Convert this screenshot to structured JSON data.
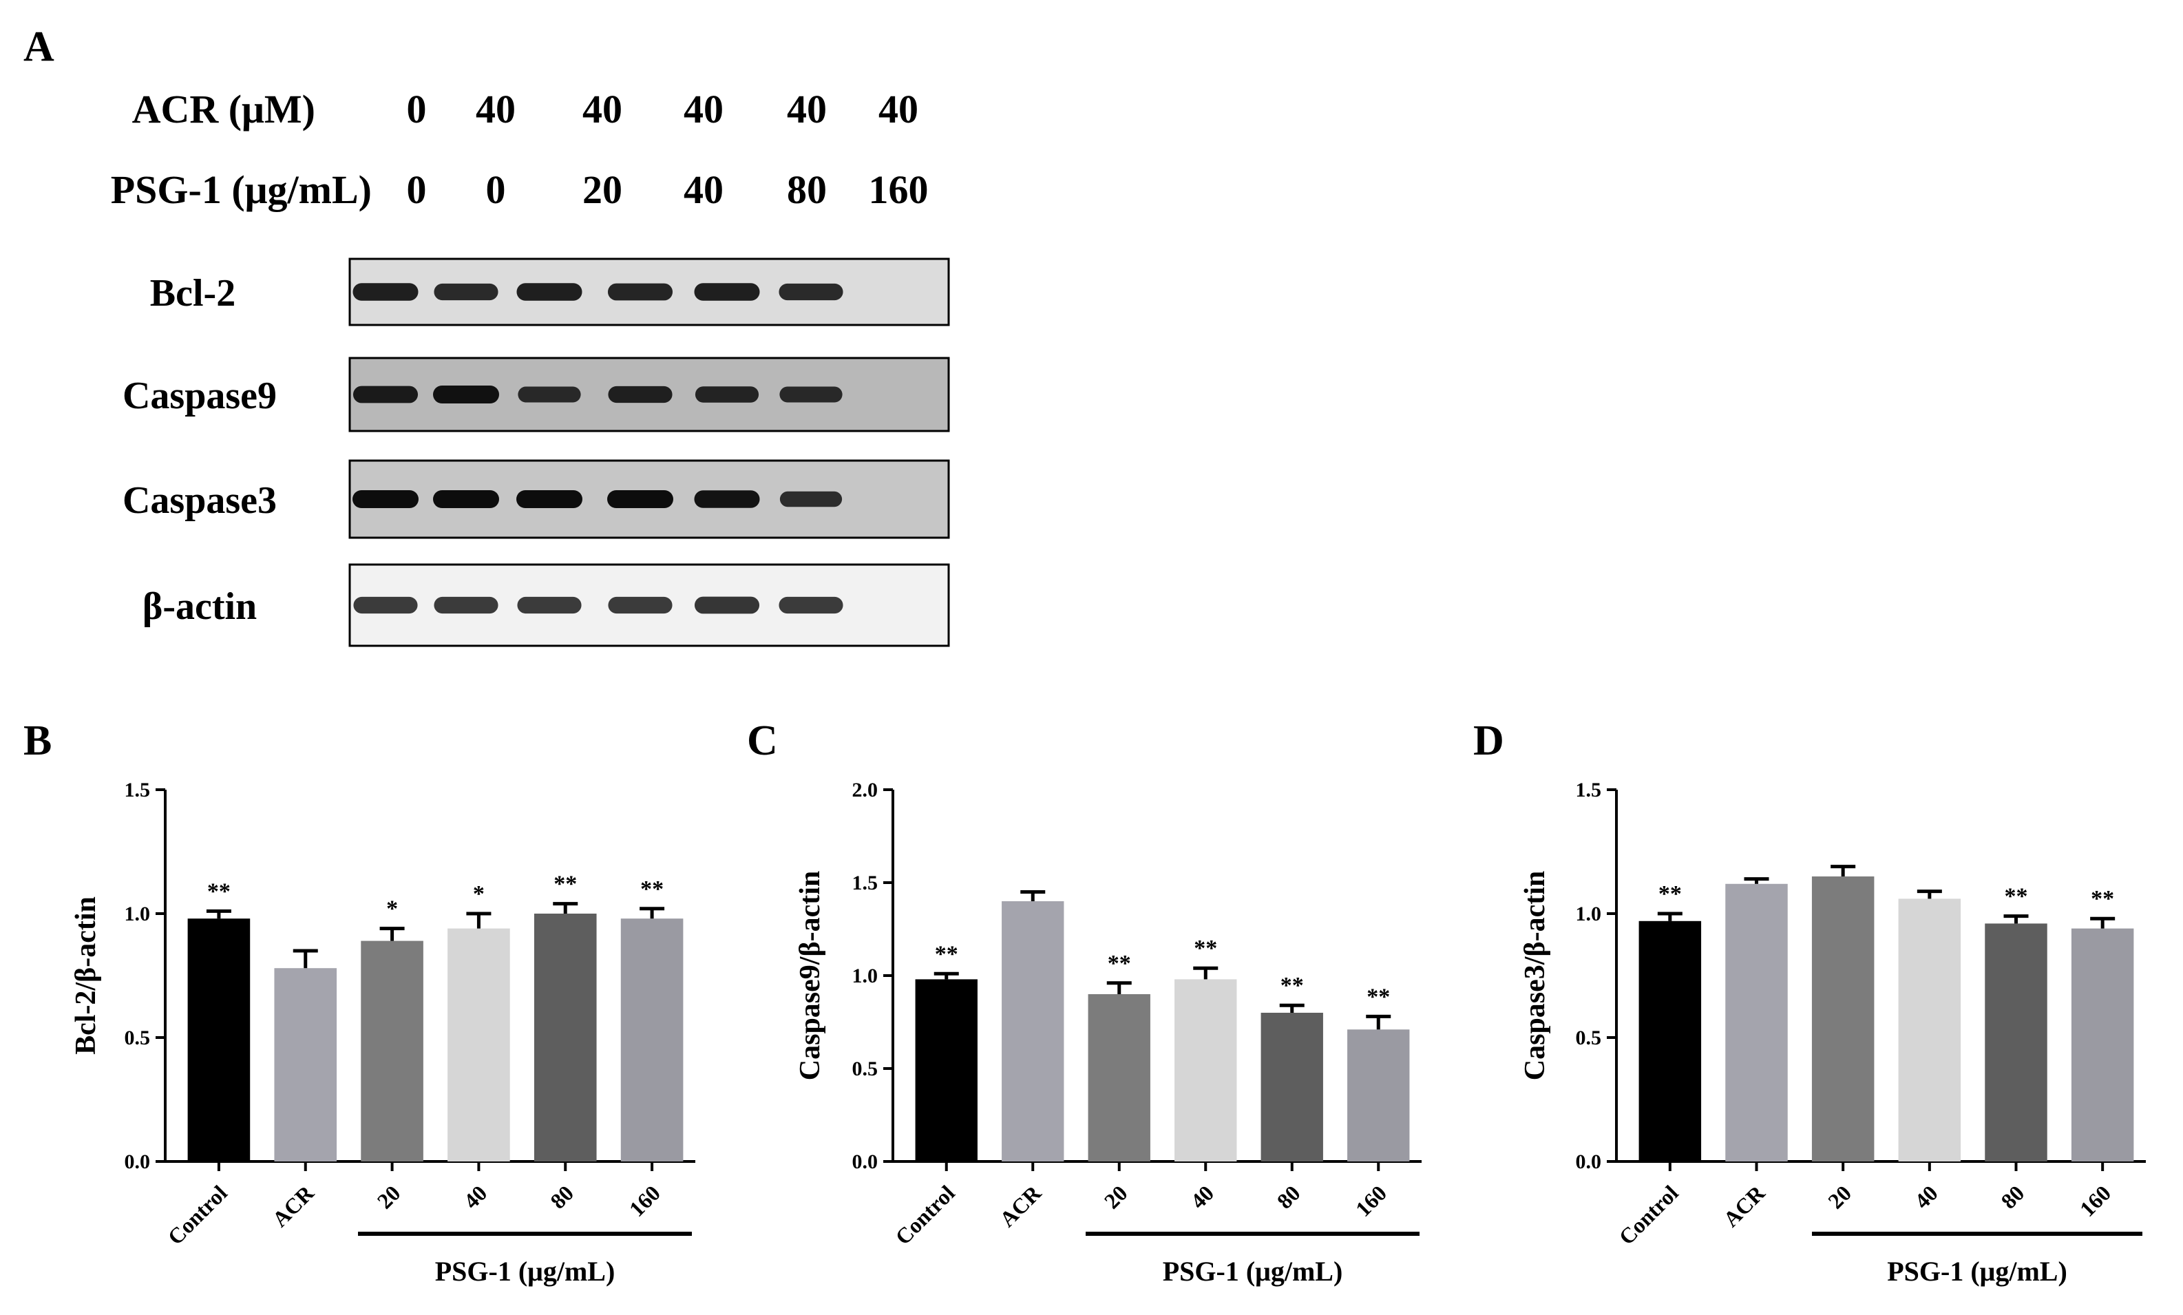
{
  "panel_a": {
    "letter": "A",
    "conditions": [
      {
        "label": "ACR (μM)",
        "values": [
          "0",
          "40",
          "40",
          "40",
          "40",
          "40"
        ]
      },
      {
        "label": "PSG-1 (μg/mL)",
        "values": [
          "0",
          "0",
          "20",
          "40",
          "80",
          "160"
        ]
      }
    ],
    "blots": [
      {
        "label": "Bcl-2",
        "bg": "#dcdcdc",
        "band_color": "#1a1a1a",
        "intensity": [
          0.95,
          0.85,
          0.95,
          0.9,
          0.95,
          0.85
        ]
      },
      {
        "label": "Caspase9",
        "bg": "#b8b8b8",
        "band_color": "#111111",
        "intensity": [
          0.9,
          1.0,
          0.75,
          0.85,
          0.8,
          0.75
        ]
      },
      {
        "label": "Caspase3",
        "bg": "#c6c6c6",
        "band_color": "#0d0d0d",
        "intensity": [
          1.0,
          1.0,
          1.0,
          1.0,
          0.95,
          0.7
        ]
      },
      {
        "label": "β-actin",
        "bg": "#f2f2f2",
        "band_color": "#2a2a2a",
        "intensity": [
          0.85,
          0.85,
          0.85,
          0.85,
          0.9,
          0.85
        ]
      }
    ]
  },
  "chart_data": [
    {
      "panel": "B",
      "type": "bar",
      "ylabel": "Bcl-2/β-actin",
      "categories": [
        "Control",
        "ACR",
        "20",
        "40",
        "80",
        "160"
      ],
      "values": [
        0.98,
        0.78,
        0.89,
        0.94,
        1.0,
        0.98
      ],
      "errors": [
        0.03,
        0.07,
        0.05,
        0.06,
        0.04,
        0.04
      ],
      "significance": [
        "**",
        "",
        "*",
        "*",
        "**",
        "**"
      ],
      "colors": [
        "#000000",
        "#a4a4ad",
        "#7c7c7c",
        "#d6d6d6",
        "#5e5e5e",
        "#9a9aa2"
      ],
      "ylim": [
        0,
        1.5
      ],
      "yticks": [
        "0.0",
        "0.5",
        "1.0",
        "1.5"
      ],
      "group_label": "PSG-1 (μg/mL)"
    },
    {
      "panel": "C",
      "type": "bar",
      "ylabel": "Caspase9/β-actin",
      "categories": [
        "Control",
        "ACR",
        "20",
        "40",
        "80",
        "160"
      ],
      "values": [
        0.98,
        1.4,
        0.9,
        0.98,
        0.8,
        0.71
      ],
      "errors": [
        0.03,
        0.05,
        0.06,
        0.06,
        0.04,
        0.07
      ],
      "significance": [
        "**",
        "",
        "**",
        "**",
        "**",
        "**"
      ],
      "colors": [
        "#000000",
        "#a4a4ad",
        "#7c7c7c",
        "#d6d6d6",
        "#5e5e5e",
        "#9a9aa2"
      ],
      "ylim": [
        0,
        2.0
      ],
      "yticks": [
        "0.0",
        "0.5",
        "1.0",
        "1.5",
        "2.0"
      ],
      "group_label": "PSG-1 (μg/mL)"
    },
    {
      "panel": "D",
      "type": "bar",
      "ylabel": "Caspase3/β-actin",
      "categories": [
        "Control",
        "ACR",
        "20",
        "40",
        "80",
        "160"
      ],
      "values": [
        0.97,
        1.12,
        1.15,
        1.06,
        0.96,
        0.94
      ],
      "errors": [
        0.03,
        0.02,
        0.04,
        0.03,
        0.03,
        0.04
      ],
      "significance": [
        "**",
        "",
        "",
        "",
        "**",
        "**"
      ],
      "colors": [
        "#000000",
        "#a4a4ad",
        "#7c7c7c",
        "#d6d6d6",
        "#5e5e5e",
        "#9a9aa2"
      ],
      "ylim": [
        0,
        1.5
      ],
      "yticks": [
        "0.0",
        "0.5",
        "1.0",
        "1.5"
      ],
      "group_label": "PSG-1 (μg/mL)"
    }
  ]
}
